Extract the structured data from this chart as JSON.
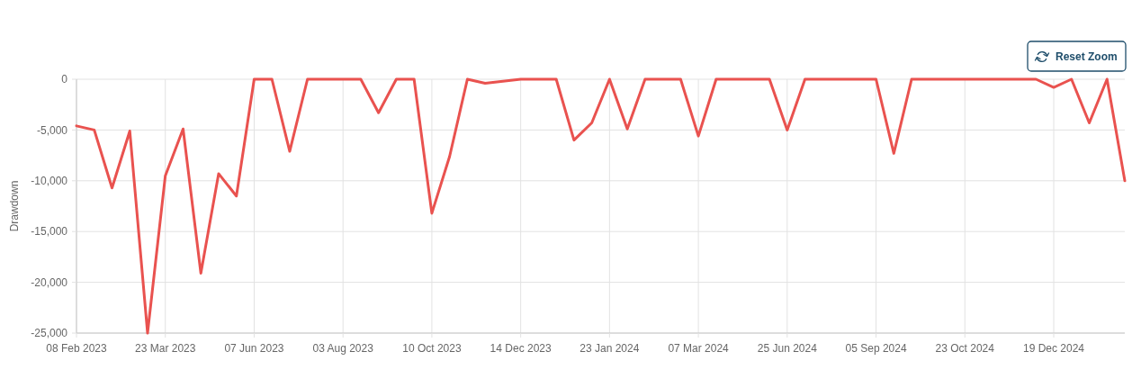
{
  "chart_data": {
    "type": "line",
    "ylabel": "Drawdown",
    "categories": [
      "08 Feb 2023",
      null,
      null,
      null,
      null,
      "23 Mar 2023",
      null,
      null,
      null,
      null,
      "07 Jun 2023",
      null,
      null,
      null,
      null,
      "03 Aug 2023",
      null,
      null,
      null,
      null,
      "10 Oct 2023",
      null,
      null,
      null,
      null,
      "14 Dec 2023",
      null,
      null,
      null,
      null,
      "23 Jan 2024",
      null,
      null,
      null,
      null,
      "07 Mar 2024",
      null,
      null,
      null,
      null,
      "25 Jun 2024",
      null,
      null,
      null,
      null,
      "05 Sep 2024",
      null,
      null,
      null,
      null,
      "23 Oct 2024",
      null,
      null,
      null,
      null,
      "19 Dec 2024",
      null,
      null,
      null,
      null
    ],
    "series": [
      {
        "color": "#e9524f",
        "values": [
          -4600,
          -5000,
          -10700,
          -5100,
          -25000,
          -9500,
          -4900,
          -19100,
          -9300,
          -11500,
          0,
          0,
          -7100,
          0,
          0,
          0,
          0,
          -3300,
          0,
          0,
          -13200,
          -7600,
          0,
          -400,
          -200,
          0,
          0,
          0,
          -6000,
          -4300,
          0,
          -4900,
          0,
          0,
          0,
          -5600,
          0,
          0,
          0,
          0,
          -5000,
          0,
          0,
          0,
          0,
          0,
          -7300,
          0,
          0,
          0,
          0,
          0,
          0,
          0,
          0,
          -800,
          0,
          -4300,
          0,
          -10000
        ]
      }
    ],
    "ylim": [
      -25000,
      0
    ],
    "yticks": [
      {
        "value": -25000,
        "label": "-25,000"
      },
      {
        "value": -20000,
        "label": "-20,000"
      },
      {
        "value": -15000,
        "label": "-15,000"
      },
      {
        "value": -10000,
        "label": "-10,000"
      },
      {
        "value": -5000,
        "label": "-5,000"
      },
      0
    ],
    "grid": true,
    "annotations": [
      "Reset Zoom"
    ]
  }
}
